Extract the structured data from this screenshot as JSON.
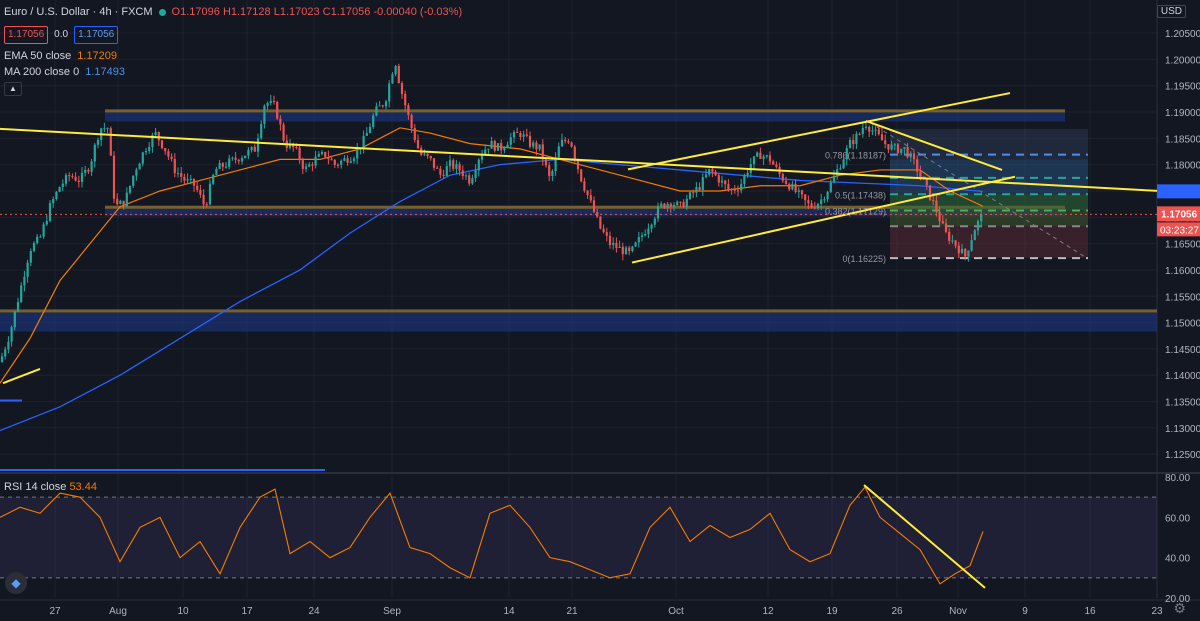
{
  "header": {
    "symbol": "Euro / U.S. Dollar · 4h · FXCM",
    "open": "O1.17096",
    "high": "H1.17128",
    "low": "L1.17023",
    "close": "C1.17056",
    "change": "-0.00040 (-0.03%)",
    "bid": "1.17056",
    "spread": "0.0",
    "ask": "1.17056"
  },
  "indicators": {
    "ema_label": "EMA 50 close",
    "ema_value": "1.17209",
    "ma_label": "MA 200 close 0",
    "ma_value": "1.17493",
    "rsi_label": "RSI 14 close",
    "rsi_value": "53.44"
  },
  "currency": "USD",
  "colors": {
    "up": "#26a69a",
    "down": "#ef5350",
    "ema": "#f57c00",
    "ma": "#2962ff",
    "trend": "#ffeb3b",
    "rsi": "#f57c00",
    "zone_blue": "#1e3a8a",
    "zone_gold": "#b8860b"
  },
  "chart_data": [
    {
      "type": "candlestick",
      "price_axis": {
        "ticks": [
          "1.20500",
          "1.20000",
          "1.19500",
          "1.19000",
          "1.18500",
          "1.18000",
          "1.17500",
          "1.17000",
          "1.16500",
          "1.16000",
          "1.15500",
          "1.15000",
          "1.14500",
          "1.14000",
          "1.13500",
          "1.13000",
          "1.12500"
        ],
        "range": [
          1.122,
          1.209
        ]
      },
      "time_axis": [
        "27",
        "Aug",
        "10",
        "17",
        "24",
        "Sep",
        "14",
        "21",
        "Oct",
        "12",
        "19",
        "26",
        "Nov",
        "9",
        "16",
        "23"
      ],
      "last_price": "1.17056",
      "countdown": "03:23:27",
      "ma200_tag": "1.17493",
      "fib_labels": [
        "0.786(1.18187)",
        "0.5(1.17438)",
        "0.382(1.17129)",
        "0(1.16225)"
      ],
      "zones": [
        {
          "name": "resistance-zone",
          "from": 1.1882,
          "to": 1.1905
        },
        {
          "name": "middle-zone",
          "from": 1.1702,
          "to": 1.1722
        },
        {
          "name": "support-zone",
          "from": 1.1483,
          "to": 1.1525
        }
      ],
      "price_path": [
        [
          0,
          1.1425
        ],
        [
          10,
          1.148
        ],
        [
          20,
          1.156
        ],
        [
          30,
          1.164
        ],
        [
          40,
          1.166
        ],
        [
          50,
          1.172
        ],
        [
          60,
          1.176
        ],
        [
          70,
          1.178
        ],
        [
          80,
          1.177
        ],
        [
          90,
          1.18
        ],
        [
          100,
          1.187
        ],
        [
          108,
          1.187
        ],
        [
          115,
          1.172
        ],
        [
          125,
          1.173
        ],
        [
          135,
          1.179
        ],
        [
          145,
          1.183
        ],
        [
          155,
          1.186
        ],
        [
          165,
          1.183
        ],
        [
          175,
          1.179
        ],
        [
          185,
          1.177
        ],
        [
          195,
          1.176
        ],
        [
          205,
          1.172
        ],
        [
          215,
          1.179
        ],
        [
          225,
          1.18
        ],
        [
          235,
          1.181
        ],
        [
          245,
          1.182
        ],
        [
          255,
          1.183
        ],
        [
          265,
          1.192
        ],
        [
          275,
          1.191
        ],
        [
          285,
          1.184
        ],
        [
          295,
          1.183
        ],
        [
          305,
          1.179
        ],
        [
          315,
          1.181
        ],
        [
          325,
          1.182
        ],
        [
          335,
          1.18
        ],
        [
          345,
          1.181
        ],
        [
          355,
          1.182
        ],
        [
          365,
          1.185
        ],
        [
          375,
          1.19
        ],
        [
          385,
          1.192
        ],
        [
          395,
          1.2
        ],
        [
          400,
          1.195
        ],
        [
          410,
          1.188
        ],
        [
          420,
          1.182
        ],
        [
          430,
          1.181
        ],
        [
          440,
          1.178
        ],
        [
          450,
          1.18
        ],
        [
          460,
          1.179
        ],
        [
          470,
          1.177
        ],
        [
          480,
          1.182
        ],
        [
          490,
          1.184
        ],
        [
          500,
          1.183
        ],
        [
          510,
          1.185
        ],
        [
          520,
          1.186
        ],
        [
          530,
          1.184
        ],
        [
          540,
          1.183
        ],
        [
          550,
          1.177
        ],
        [
          560,
          1.184
        ],
        [
          570,
          1.185
        ],
        [
          580,
          1.178
        ],
        [
          590,
          1.173
        ],
        [
          600,
          1.168
        ],
        [
          610,
          1.165
        ],
        [
          620,
          1.164
        ],
        [
          630,
          1.163
        ],
        [
          640,
          1.166
        ],
        [
          650,
          1.169
        ],
        [
          660,
          1.172
        ],
        [
          670,
          1.173
        ],
        [
          680,
          1.172
        ],
        [
          690,
          1.174
        ],
        [
          700,
          1.176
        ],
        [
          710,
          1.179
        ],
        [
          720,
          1.177
        ],
        [
          730,
          1.175
        ],
        [
          740,
          1.176
        ],
        [
          750,
          1.18
        ],
        [
          760,
          1.182
        ],
        [
          770,
          1.181
        ],
        [
          780,
          1.178
        ],
        [
          790,
          1.176
        ],
        [
          800,
          1.174
        ],
        [
          810,
          1.172
        ],
        [
          820,
          1.173
        ],
        [
          830,
          1.176
        ],
        [
          840,
          1.18
        ],
        [
          850,
          1.184
        ],
        [
          860,
          1.186
        ],
        [
          865,
          1.188
        ],
        [
          875,
          1.186
        ],
        [
          885,
          1.184
        ],
        [
          895,
          1.183
        ],
        [
          905,
          1.183
        ],
        [
          915,
          1.18
        ],
        [
          925,
          1.176
        ],
        [
          935,
          1.172
        ],
        [
          945,
          1.167
        ],
        [
          955,
          1.165
        ],
        [
          965,
          1.1625
        ],
        [
          975,
          1.168
        ],
        [
          983,
          1.1705
        ]
      ],
      "ema50_path": [
        [
          0,
          1.1385
        ],
        [
          30,
          1.147
        ],
        [
          60,
          1.158
        ],
        [
          90,
          1.165
        ],
        [
          120,
          1.172
        ],
        [
          160,
          1.175
        ],
        [
          200,
          1.177
        ],
        [
          240,
          1.179
        ],
        [
          280,
          1.181
        ],
        [
          320,
          1.181
        ],
        [
          360,
          1.183
        ],
        [
          400,
          1.187
        ],
        [
          430,
          1.186
        ],
        [
          470,
          1.184
        ],
        [
          520,
          1.183
        ],
        [
          560,
          1.181
        ],
        [
          600,
          1.179
        ],
        [
          640,
          1.177
        ],
        [
          680,
          1.175
        ],
        [
          720,
          1.175
        ],
        [
          760,
          1.176
        ],
        [
          800,
          1.176
        ],
        [
          840,
          1.178
        ],
        [
          880,
          1.179
        ],
        [
          920,
          1.179
        ],
        [
          950,
          1.175
        ],
        [
          983,
          1.1721
        ]
      ],
      "ma200_path": [
        [
          0,
          1.1295
        ],
        [
          60,
          1.134
        ],
        [
          120,
          1.14
        ],
        [
          180,
          1.147
        ],
        [
          240,
          1.154
        ],
        [
          300,
          1.16
        ],
        [
          350,
          1.167
        ],
        [
          400,
          1.173
        ],
        [
          450,
          1.178
        ],
        [
          500,
          1.18
        ],
        [
          560,
          1.181
        ],
        [
          620,
          1.18
        ],
        [
          680,
          1.179
        ],
        [
          740,
          1.178
        ],
        [
          800,
          1.177
        ],
        [
          860,
          1.1765
        ],
        [
          920,
          1.176
        ],
        [
          983,
          1.1749
        ]
      ],
      "trendlines": [
        {
          "name": "long-downtrend-line",
          "p1": [
            0,
            1.1868
          ],
          "p2": [
            1160,
            1.175
          ]
        },
        {
          "name": "channel-lower-line",
          "p1": [
            632,
            1.1614
          ],
          "p2": [
            1015,
            1.1777
          ]
        },
        {
          "name": "channel-upper-line",
          "p1": [
            628,
            1.1791
          ],
          "p2": [
            1010,
            1.1936
          ]
        },
        {
          "name": "wedge-top-line",
          "p1": [
            866,
            1.1883
          ],
          "p2": [
            1002,
            1.179
          ]
        },
        {
          "name": "lower-left-line",
          "p1": [
            3,
            1.1385
          ],
          "p2": [
            40,
            1.1412
          ]
        }
      ]
    },
    {
      "type": "line",
      "name": "RSI 14 close",
      "range": [
        20,
        80
      ],
      "ticks": [
        "80.00",
        "60.00",
        "40.00",
        "20.00"
      ],
      "bands": [
        70,
        30
      ],
      "path": [
        [
          0,
          60
        ],
        [
          20,
          65
        ],
        [
          40,
          62
        ],
        [
          60,
          72
        ],
        [
          80,
          70
        ],
        [
          100,
          60
        ],
        [
          120,
          38
        ],
        [
          140,
          55
        ],
        [
          160,
          60
        ],
        [
          180,
          40
        ],
        [
          200,
          48
        ],
        [
          220,
          32
        ],
        [
          240,
          55
        ],
        [
          260,
          70
        ],
        [
          275,
          74
        ],
        [
          290,
          42
        ],
        [
          310,
          48
        ],
        [
          330,
          40
        ],
        [
          350,
          45
        ],
        [
          370,
          60
        ],
        [
          390,
          72
        ],
        [
          410,
          45
        ],
        [
          430,
          42
        ],
        [
          450,
          35
        ],
        [
          470,
          30
        ],
        [
          490,
          62
        ],
        [
          510,
          66
        ],
        [
          530,
          55
        ],
        [
          550,
          40
        ],
        [
          570,
          38
        ],
        [
          590,
          34
        ],
        [
          610,
          30
        ],
        [
          630,
          32
        ],
        [
          650,
          55
        ],
        [
          670,
          65
        ],
        [
          690,
          48
        ],
        [
          710,
          56
        ],
        [
          730,
          50
        ],
        [
          750,
          54
        ],
        [
          770,
          62
        ],
        [
          790,
          44
        ],
        [
          810,
          38
        ],
        [
          830,
          42
        ],
        [
          850,
          66
        ],
        [
          865,
          75
        ],
        [
          880,
          60
        ],
        [
          900,
          52
        ],
        [
          920,
          44
        ],
        [
          940,
          27
        ],
        [
          955,
          32
        ],
        [
          970,
          36
        ],
        [
          983,
          53
        ]
      ],
      "trendline": {
        "p1": [
          864,
          76
        ],
        "p2": [
          985,
          25
        ]
      }
    }
  ]
}
